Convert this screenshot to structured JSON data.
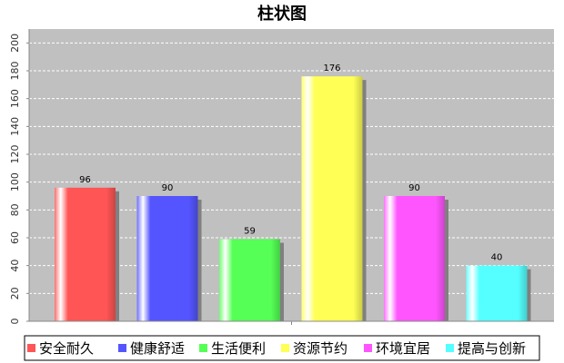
{
  "chart_data": {
    "type": "bar",
    "title": "柱状图",
    "categories": [
      "安全耐久",
      "健康舒适",
      "生活便利",
      "资源节约",
      "环境宜居",
      "提高与创新"
    ],
    "values": [
      96,
      90,
      59,
      176,
      90,
      40
    ],
    "colors": [
      "#ff5555",
      "#5555ff",
      "#55ff55",
      "#ffff55",
      "#ff55ff",
      "#55ffff"
    ],
    "ylim": [
      0,
      210
    ],
    "yticks": [
      0,
      20,
      40,
      60,
      80,
      100,
      120,
      140,
      160,
      180,
      200
    ],
    "grid": true,
    "legend": "bottom"
  }
}
